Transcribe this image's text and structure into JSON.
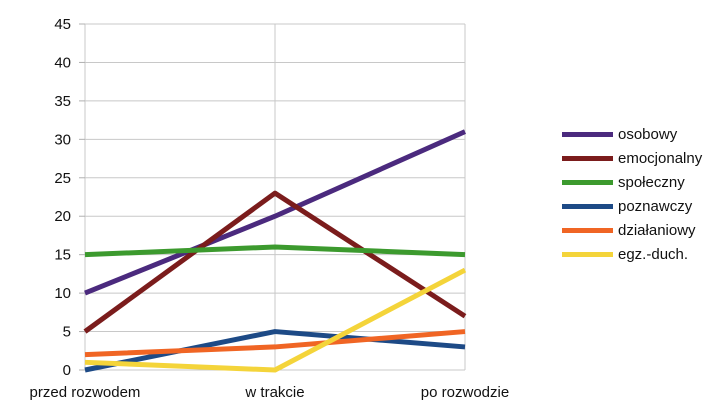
{
  "chart_data": {
    "type": "line",
    "title": "",
    "xlabel": "",
    "ylabel": "",
    "categories": [
      "przed rozwodem",
      "w trakcie",
      "po rozwodzie"
    ],
    "ylim": [
      0,
      45
    ],
    "yticks": [
      0,
      5,
      10,
      15,
      20,
      25,
      30,
      35,
      40,
      45
    ],
    "grid": true,
    "legend_position": "right",
    "series": [
      {
        "name": "osobowy",
        "values": [
          10,
          20,
          31
        ],
        "color": "#4b2a7e"
      },
      {
        "name": "emocjonalny",
        "values": [
          5,
          23,
          7
        ],
        "color": "#7b1c1c"
      },
      {
        "name": "społeczny",
        "values": [
          15,
          16,
          15
        ],
        "color": "#3c9a2e"
      },
      {
        "name": "poznawczy",
        "values": [
          0,
          5,
          3
        ],
        "color": "#1d4a86"
      },
      {
        "name": "działaniowy",
        "values": [
          2,
          3,
          5
        ],
        "color": "#f06524"
      },
      {
        "name": "egz.-duch.",
        "values": [
          1,
          0,
          13
        ],
        "color": "#f4d43a"
      }
    ]
  }
}
